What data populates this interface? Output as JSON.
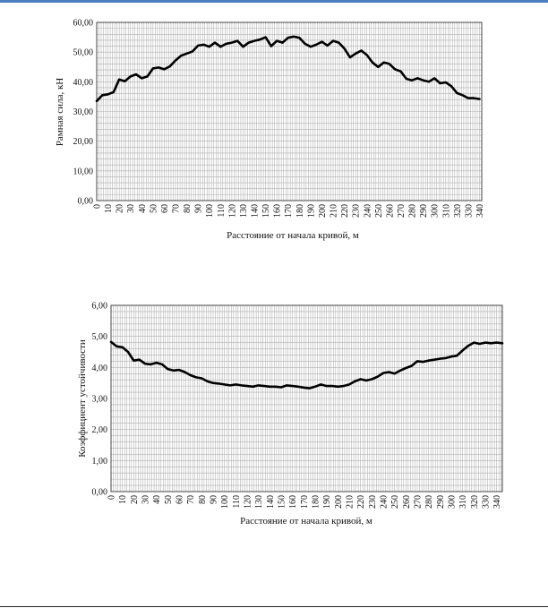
{
  "colors": {
    "grid": "#b0b0b0",
    "line": "#000000",
    "frame": "#444444",
    "top_rule": "#4a7fc0"
  },
  "chart_data": [
    {
      "type": "line",
      "title": "",
      "xlabel": "Расстояние от начала кривой, м",
      "ylabel": "Рамная сила, кН",
      "ylim": [
        0,
        60
      ],
      "y_ticks": [
        "0,00",
        "10,00",
        "20,00",
        "30,00",
        "40,00",
        "50,00",
        "60,00"
      ],
      "xlim": [
        0,
        342
      ],
      "x_ticks": [
        "0",
        "10",
        "20",
        "30",
        "40",
        "50",
        "60",
        "70",
        "80",
        "90",
        "100",
        "110",
        "120",
        "130",
        "140",
        "150",
        "160",
        "170",
        "180",
        "190",
        "200",
        "210",
        "220",
        "230",
        "240",
        "250",
        "260",
        "270",
        "280",
        "290",
        "300",
        "310",
        "320",
        "330",
        "340"
      ],
      "grid": true,
      "legend": "none",
      "series": [
        {
          "x": [
            0,
            5,
            10,
            15,
            20,
            25,
            30,
            35,
            40,
            45,
            50,
            55,
            60,
            65,
            70,
            75,
            80,
            85,
            90,
            95,
            100,
            105,
            110,
            115,
            120,
            125,
            130,
            135,
            140,
            145,
            150,
            155,
            160,
            165,
            170,
            175,
            180,
            185,
            190,
            195,
            200,
            205,
            210,
            215,
            220,
            225,
            230,
            235,
            240,
            245,
            250,
            255,
            260,
            265,
            270,
            275,
            280,
            285,
            290,
            295,
            300,
            305,
            310,
            315,
            320,
            325,
            330,
            335,
            340
          ],
          "y": [
            33.5,
            35.5,
            35.8,
            36.5,
            40.8,
            40.2,
            41.8,
            42.5,
            41.2,
            41.8,
            44.5,
            44.8,
            44.2,
            45.2,
            47.2,
            48.8,
            49.5,
            50.2,
            52.2,
            52.5,
            51.8,
            53.2,
            51.8,
            52.8,
            53.2,
            53.8,
            51.8,
            53.2,
            53.8,
            54.2,
            55.0,
            52.0,
            53.8,
            53.2,
            54.8,
            55.2,
            54.8,
            52.8,
            51.8,
            52.5,
            53.5,
            52.2,
            53.8,
            53.2,
            51.2,
            48.2,
            49.5,
            50.5,
            49.0,
            46.5,
            45.0,
            46.5,
            46.0,
            44.2,
            43.5,
            41.0,
            40.5,
            41.2,
            40.5,
            40.0,
            41.2,
            39.5,
            39.8,
            38.5,
            36.2,
            35.5,
            34.5,
            34.5,
            34.2
          ]
        }
      ]
    },
    {
      "type": "line",
      "title": "",
      "xlabel": "Расстояние от начала кривой, м",
      "ylabel": "Коэффициент устойчивости",
      "ylim": [
        0,
        6
      ],
      "y_ticks": [
        "0,00",
        "1,00",
        "2,00",
        "3,00",
        "4,00",
        "5,00",
        "6,00"
      ],
      "xlim": [
        0,
        345
      ],
      "x_ticks": [
        "0",
        "10",
        "20",
        "30",
        "40",
        "50",
        "60",
        "70",
        "80",
        "90",
        "100",
        "110",
        "120",
        "130",
        "140",
        "150",
        "160",
        "170",
        "180",
        "190",
        "200",
        "210",
        "220",
        "230",
        "240",
        "250",
        "260",
        "270",
        "280",
        "290",
        "300",
        "310",
        "320",
        "330",
        "340"
      ],
      "grid": true,
      "legend": "none",
      "series": [
        {
          "x": [
            0,
            5,
            10,
            15,
            20,
            25,
            30,
            35,
            40,
            45,
            50,
            55,
            60,
            65,
            70,
            75,
            80,
            85,
            90,
            95,
            100,
            105,
            110,
            115,
            120,
            125,
            130,
            135,
            140,
            145,
            150,
            155,
            160,
            165,
            170,
            175,
            180,
            185,
            190,
            195,
            200,
            205,
            210,
            215,
            220,
            225,
            230,
            235,
            240,
            245,
            250,
            255,
            260,
            265,
            270,
            275,
            280,
            285,
            290,
            295,
            300,
            305,
            310,
            315,
            320,
            325,
            330,
            335,
            340,
            345
          ],
          "y": [
            4.82,
            4.68,
            4.65,
            4.5,
            4.22,
            4.25,
            4.12,
            4.1,
            4.15,
            4.1,
            3.95,
            3.9,
            3.92,
            3.85,
            3.75,
            3.68,
            3.65,
            3.55,
            3.5,
            3.48,
            3.45,
            3.42,
            3.45,
            3.42,
            3.4,
            3.38,
            3.42,
            3.4,
            3.38,
            3.38,
            3.36,
            3.42,
            3.4,
            3.38,
            3.35,
            3.33,
            3.38,
            3.45,
            3.4,
            3.4,
            3.38,
            3.4,
            3.45,
            3.55,
            3.62,
            3.58,
            3.62,
            3.7,
            3.82,
            3.85,
            3.8,
            3.9,
            3.98,
            4.05,
            4.2,
            4.18,
            4.22,
            4.25,
            4.28,
            4.3,
            4.35,
            4.38,
            4.55,
            4.7,
            4.8,
            4.76,
            4.8,
            4.78,
            4.8,
            4.78
          ]
        }
      ]
    }
  ]
}
